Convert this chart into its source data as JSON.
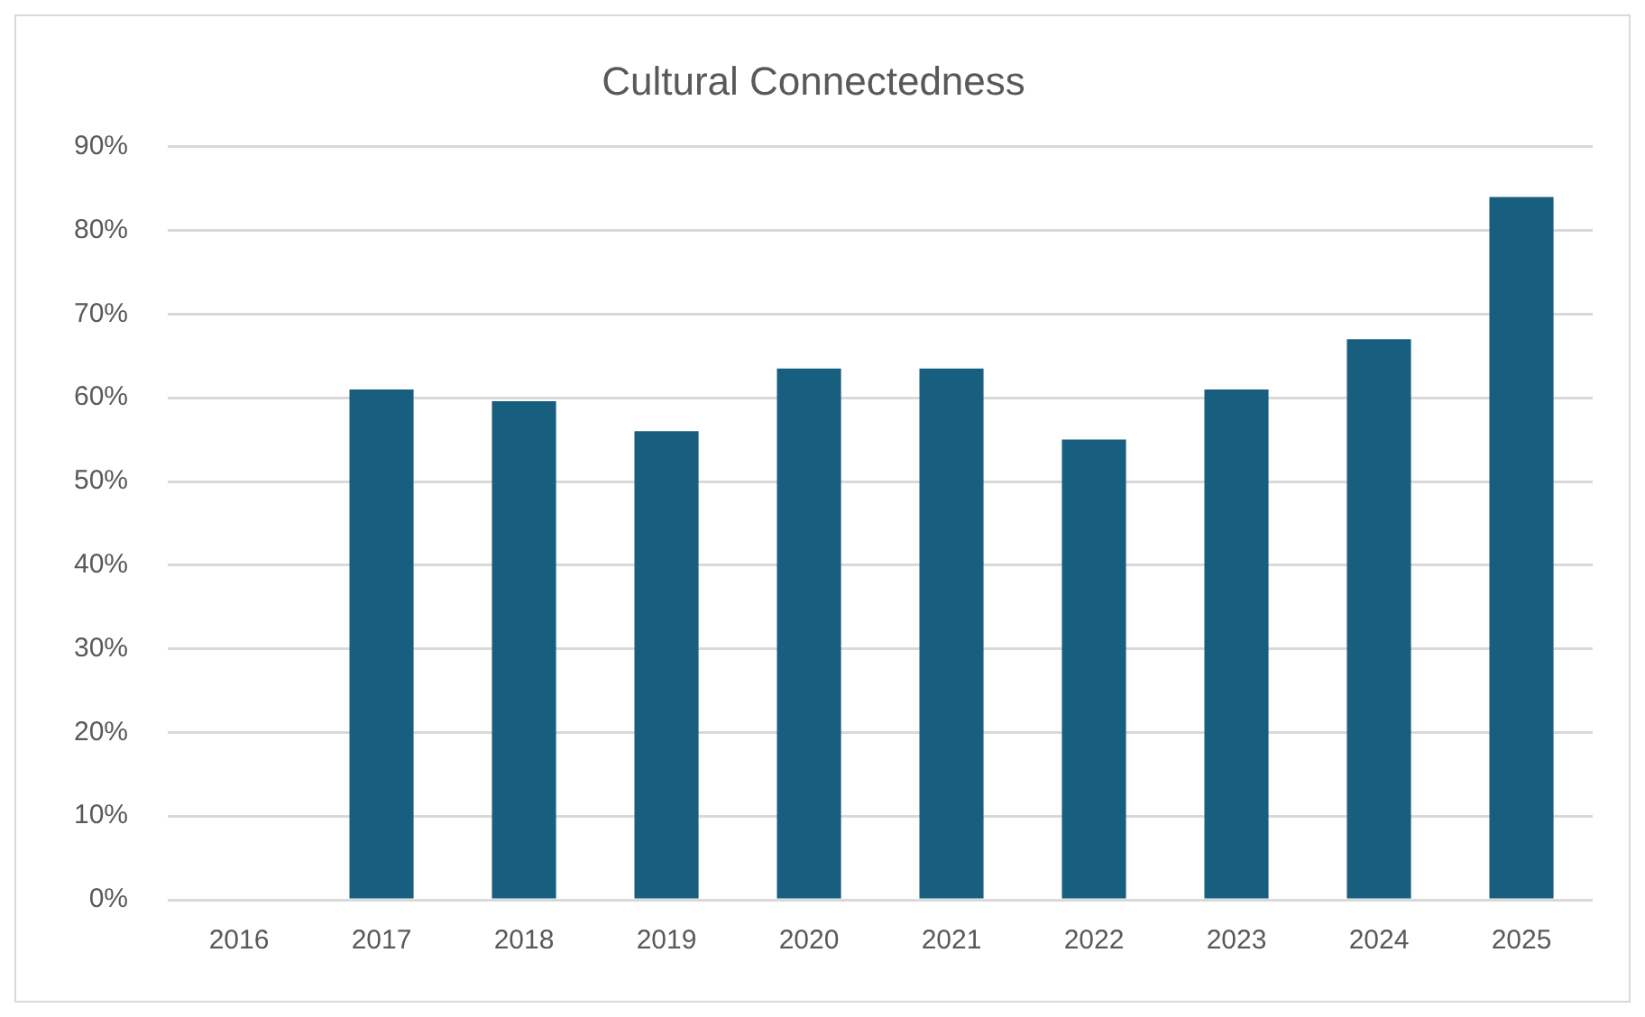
{
  "chart_data": {
    "type": "bar",
    "title": "Cultural Connectedness",
    "categories": [
      "2016",
      "2017",
      "2018",
      "2019",
      "2020",
      "2021",
      "2022",
      "2023",
      "2024",
      "2025"
    ],
    "values": [
      null,
      61,
      59.6,
      56,
      63.5,
      63.5,
      55,
      61,
      67,
      84
    ],
    "color": "#175e7f",
    "ylim": [
      0,
      90
    ],
    "yticks": [
      {
        "value": 0,
        "label": "0%"
      },
      {
        "value": 10,
        "label": "10%"
      },
      {
        "value": 20,
        "label": "20%"
      },
      {
        "value": 30,
        "label": "30%"
      },
      {
        "value": 40,
        "label": "40%"
      },
      {
        "value": 50,
        "label": "50%"
      },
      {
        "value": 60,
        "label": "60%"
      },
      {
        "value": 70,
        "label": "70%"
      },
      {
        "value": 80,
        "label": "80%"
      },
      {
        "value": 90,
        "label": "90%"
      }
    ],
    "grid": "y",
    "legend": false
  }
}
